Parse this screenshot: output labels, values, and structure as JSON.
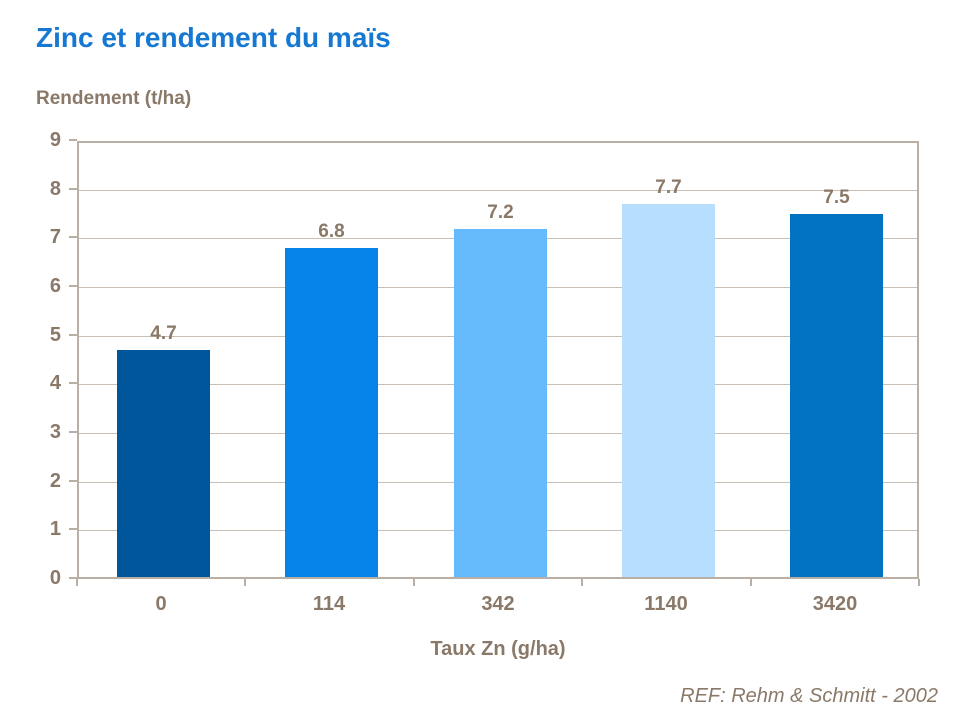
{
  "chart_data": {
    "type": "bar",
    "title": "Zinc et rendement du maïs",
    "ylabel": "Rendement (t/ha)",
    "xlabel": "Taux Zn (g/ha)",
    "categories": [
      "0",
      "114",
      "342",
      "1140",
      "3420"
    ],
    "values": [
      4.7,
      6.8,
      7.2,
      7.7,
      7.5
    ],
    "data_labels": [
      "4.7",
      "6.8",
      "7.2",
      "7.7",
      "7.5"
    ],
    "bar_colors": [
      "#00569B",
      "#0583E8",
      "#64BAFB",
      "#B7DEFC",
      "#0272C3"
    ],
    "ylim": [
      0,
      9
    ],
    "ytick_step": 1,
    "yticks": [
      "0",
      "1",
      "2",
      "3",
      "4",
      "5",
      "6",
      "7",
      "8",
      "9"
    ],
    "grid": true,
    "legend_position": "none"
  },
  "footer": {
    "reference": "REF: Rehm & Schmitt - 2002"
  },
  "colors": {
    "title_text": "#1778D2",
    "axis_text": "#8A7968",
    "plot_border": "#B9AFA4",
    "gridline": "#C8BFB5",
    "background": "#FFFFFF"
  }
}
